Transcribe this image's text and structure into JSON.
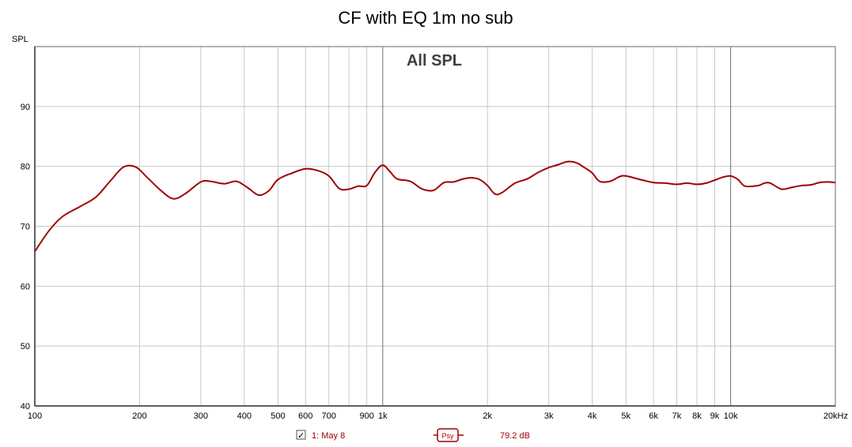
{
  "chart_data": {
    "type": "line",
    "title": "CF with EQ 1m no sub",
    "subtitle": "All SPL",
    "ylabel": "SPL",
    "xlabel": "",
    "x_scale": "log",
    "xlim": [
      100,
      20000
    ],
    "ylim": [
      40,
      100
    ],
    "x_ticks": [
      {
        "v": 100,
        "label": "100"
      },
      {
        "v": 200,
        "label": "200"
      },
      {
        "v": 300,
        "label": "300"
      },
      {
        "v": 400,
        "label": "400"
      },
      {
        "v": 500,
        "label": "500"
      },
      {
        "v": 600,
        "label": "600"
      },
      {
        "v": 700,
        "label": "700"
      },
      {
        "v": 900,
        "label": "900"
      },
      {
        "v": 1000,
        "label": "1k"
      },
      {
        "v": 2000,
        "label": "2k"
      },
      {
        "v": 3000,
        "label": "3k"
      },
      {
        "v": 4000,
        "label": "4k"
      },
      {
        "v": 5000,
        "label": "5k"
      },
      {
        "v": 6000,
        "label": "6k"
      },
      {
        "v": 7000,
        "label": "7k"
      },
      {
        "v": 8000,
        "label": "8k"
      },
      {
        "v": 9000,
        "label": "9k"
      },
      {
        "v": 10000,
        "label": "10k"
      },
      {
        "v": 20000,
        "label": "20kHz"
      }
    ],
    "x_gridlines": [
      200,
      300,
      400,
      500,
      600,
      700,
      800,
      900,
      1000,
      2000,
      3000,
      4000,
      5000,
      6000,
      7000,
      8000,
      9000,
      10000
    ],
    "x_major_gridlines": [
      1000,
      10000
    ],
    "y_ticks": [
      40,
      50,
      60,
      70,
      80,
      90
    ],
    "grid": true,
    "series": [
      {
        "name": "1: May 8",
        "color": "#a00000",
        "x": [
          100,
          110,
          120,
          135,
          150,
          165,
          180,
          195,
          210,
          230,
          250,
          270,
          300,
          320,
          350,
          380,
          410,
          440,
          470,
          500,
          550,
          600,
          650,
          700,
          750,
          800,
          850,
          900,
          950,
          1000,
          1050,
          1100,
          1200,
          1300,
          1400,
          1500,
          1600,
          1700,
          1800,
          1900,
          2000,
          2100,
          2200,
          2400,
          2600,
          2800,
          3000,
          3200,
          3400,
          3600,
          3800,
          4000,
          4200,
          4500,
          4800,
          5000,
          5500,
          6000,
          6500,
          7000,
          7500,
          8000,
          8500,
          9000,
          9500,
          10000,
          10500,
          11000,
          12000,
          12500,
          13000,
          14000,
          15000,
          16000,
          17000,
          18000,
          19000,
          20000
        ],
        "y": [
          65.8,
          69.3,
          71.6,
          73.3,
          74.9,
          77.6,
          79.9,
          79.9,
          78.2,
          76.0,
          74.6,
          75.4,
          77.4,
          77.5,
          77.1,
          77.5,
          76.4,
          75.2,
          75.9,
          77.8,
          78.9,
          79.6,
          79.3,
          78.4,
          76.3,
          76.2,
          76.7,
          76.8,
          79.0,
          80.2,
          79.1,
          77.9,
          77.5,
          76.2,
          76.0,
          77.3,
          77.4,
          77.9,
          78.1,
          77.8,
          76.8,
          75.4,
          75.6,
          77.2,
          77.9,
          79.0,
          79.8,
          80.3,
          80.8,
          80.6,
          79.8,
          78.9,
          77.5,
          77.5,
          78.3,
          78.4,
          77.8,
          77.3,
          77.2,
          77.0,
          77.2,
          77.0,
          77.2,
          77.7,
          78.2,
          78.4,
          77.8,
          76.7,
          76.8,
          77.2,
          77.2,
          76.2,
          76.5,
          76.8,
          76.9,
          77.3,
          77.4,
          77.3
        ]
      }
    ],
    "readout": {
      "symbol": "Psy",
      "value": "79.2 dB"
    }
  },
  "legend": {
    "checkbox_mark": "✓",
    "series_label": "1: May 8",
    "smoothing_label": "Psy",
    "value_label": "79.2 dB"
  }
}
